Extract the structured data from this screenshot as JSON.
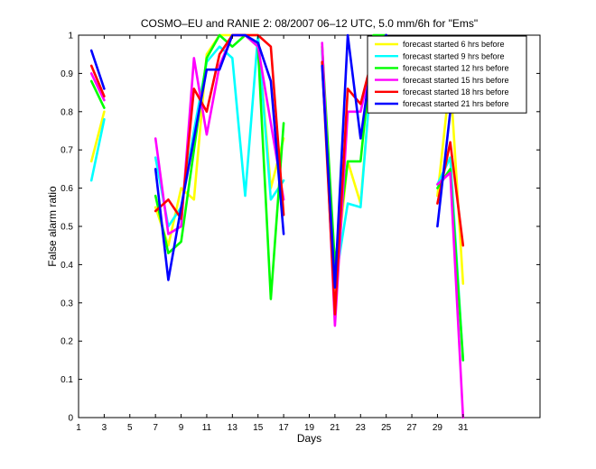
{
  "chart_data": {
    "type": "line",
    "title": "COSMO–EU and RANIE 2: 08/2007 06–12 UTC, 5.0 mm/6h for \"Ems\"",
    "xlabel": "Days",
    "ylabel": "False alarm ratio",
    "xlim": [
      1,
      37
    ],
    "ylim": [
      0,
      1
    ],
    "x_ticks": [
      1,
      3,
      5,
      7,
      9,
      11,
      13,
      15,
      17,
      19,
      21,
      23,
      25,
      27,
      29,
      31
    ],
    "y_ticks": [
      0,
      0.1,
      0.2,
      0.3,
      0.4,
      0.5,
      0.6,
      0.7,
      0.8,
      0.9,
      1
    ],
    "grid": false,
    "legend_position": "top-right",
    "series": [
      {
        "name": "forecast started 6 hrs before",
        "color": "#ffff00",
        "x": [
          2,
          3,
          null,
          7,
          8,
          9,
          10,
          11,
          12,
          13,
          14,
          15,
          16,
          17,
          null,
          20,
          21,
          22,
          23,
          24,
          25,
          null,
          29,
          30,
          31
        ],
        "y": [
          0.67,
          0.8,
          null,
          0.55,
          0.45,
          0.6,
          0.57,
          0.95,
          1.0,
          1.0,
          1.0,
          1.0,
          0.6,
          0.73,
          null,
          0.97,
          0.35,
          0.67,
          0.56,
          0.97,
          1.0,
          null,
          0.58,
          0.89,
          0.35
        ]
      },
      {
        "name": "forecast started 9 hrs before",
        "color": "#00ffff",
        "x": [
          2,
          3,
          null,
          7,
          8,
          9,
          10,
          11,
          12,
          13,
          14,
          15,
          16,
          17,
          null,
          20,
          21,
          22,
          23,
          24,
          25,
          null,
          29,
          30,
          31
        ],
        "y": [
          0.62,
          0.78,
          null,
          0.68,
          0.5,
          0.55,
          0.75,
          0.93,
          0.97,
          0.94,
          0.58,
          1.0,
          0.57,
          0.62,
          null,
          0.96,
          0.35,
          0.56,
          0.55,
          0.97,
          1.0,
          null,
          0.61,
          0.68,
          0.15
        ]
      },
      {
        "name": "forecast started 12 hrs before",
        "color": "#00ff00",
        "x": [
          2,
          3,
          null,
          7,
          8,
          9,
          10,
          11,
          12,
          13,
          14,
          15,
          16,
          17,
          null,
          20,
          21,
          22,
          23,
          24,
          25,
          null,
          29,
          30,
          31
        ],
        "y": [
          0.88,
          0.81,
          null,
          0.58,
          0.43,
          0.46,
          0.7,
          0.94,
          1.0,
          0.97,
          1.0,
          0.97,
          0.31,
          0.77,
          null,
          0.97,
          0.4,
          0.67,
          0.67,
          1.0,
          1.0,
          null,
          0.6,
          0.65,
          0.15
        ]
      },
      {
        "name": "forecast started 15 hrs before",
        "color": "#ff00ff",
        "x": [
          2,
          3,
          null,
          7,
          8,
          9,
          10,
          11,
          12,
          13,
          14,
          15,
          16,
          17,
          null,
          20,
          21,
          22,
          23,
          24,
          25,
          null,
          29,
          30,
          31
        ],
        "y": [
          0.9,
          0.83,
          null,
          0.73,
          0.48,
          0.5,
          0.94,
          0.74,
          0.92,
          1.0,
          1.0,
          0.97,
          0.77,
          0.57,
          null,
          0.98,
          0.24,
          0.8,
          0.8,
          0.95,
          1.0,
          null,
          0.61,
          0.64,
          0.0
        ]
      },
      {
        "name": "forecast started 18 hrs before",
        "color": "#ff0000",
        "x": [
          2,
          3,
          null,
          7,
          8,
          9,
          10,
          11,
          12,
          13,
          14,
          15,
          16,
          17,
          null,
          20,
          21,
          22,
          23,
          24,
          25,
          null,
          29,
          30,
          31
        ],
        "y": [
          0.92,
          0.84,
          null,
          0.54,
          0.57,
          0.52,
          0.86,
          0.8,
          0.95,
          1.0,
          1.0,
          1.0,
          0.97,
          0.53,
          null,
          0.93,
          0.27,
          0.86,
          0.82,
          0.95,
          1.0,
          null,
          0.56,
          0.72,
          0.45
        ]
      },
      {
        "name": "forecast started 21 hrs before",
        "color": "#0000ff",
        "x": [
          2,
          3,
          null,
          7,
          8,
          9,
          10,
          11,
          12,
          13,
          14,
          15,
          16,
          17,
          null,
          20,
          21,
          22,
          23,
          24,
          25,
          null,
          29,
          30,
          31
        ],
        "y": [
          0.96,
          0.86,
          null,
          0.65,
          0.36,
          0.55,
          0.73,
          0.91,
          0.91,
          1.0,
          1.0,
          0.98,
          0.88,
          0.48,
          null,
          0.92,
          0.34,
          1.0,
          0.73,
          0.97,
          1.0,
          null,
          0.5,
          0.8,
          0.9
        ]
      }
    ]
  }
}
